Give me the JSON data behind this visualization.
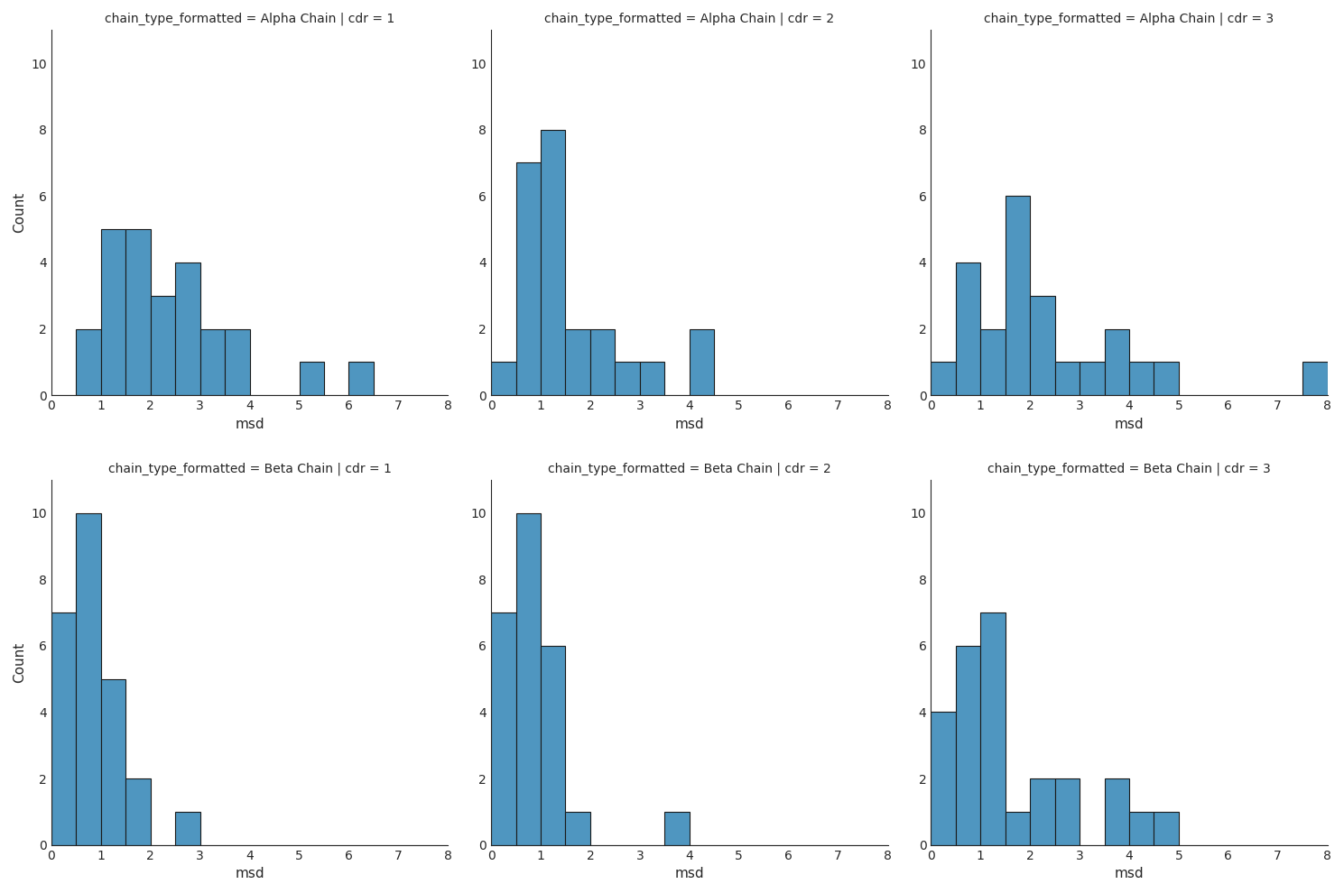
{
  "subplots": [
    {
      "title": "chain_type_formatted = Alpha Chain | cdr = 1",
      "xlabel": "msd",
      "ylabel": "Count",
      "bin_edges": [
        0.0,
        0.5,
        1.0,
        1.5,
        2.0,
        2.5,
        3.0,
        3.5,
        4.0,
        4.5,
        5.0,
        5.5,
        6.0,
        6.5,
        7.0,
        7.5,
        8.0
      ],
      "counts": [
        0,
        2,
        5,
        5,
        3,
        4,
        2,
        2,
        0,
        0,
        1,
        0,
        1,
        0,
        0,
        0
      ]
    },
    {
      "title": "chain_type_formatted = Alpha Chain | cdr = 2",
      "xlabel": "msd",
      "ylabel": "Count",
      "bin_edges": [
        0.0,
        0.5,
        1.0,
        1.5,
        2.0,
        2.5,
        3.0,
        3.5,
        4.0,
        4.5,
        5.0,
        5.5,
        6.0,
        6.5,
        7.0,
        7.5,
        8.0
      ],
      "counts": [
        1,
        7,
        8,
        2,
        2,
        1,
        1,
        0,
        2,
        0,
        0,
        0,
        0,
        0,
        0,
        0
      ]
    },
    {
      "title": "chain_type_formatted = Alpha Chain | cdr = 3",
      "xlabel": "msd",
      "ylabel": "Count",
      "bin_edges": [
        0.0,
        0.5,
        1.0,
        1.5,
        2.0,
        2.5,
        3.0,
        3.5,
        4.0,
        4.5,
        5.0,
        5.5,
        6.0,
        6.5,
        7.0,
        7.5,
        8.0
      ],
      "counts": [
        1,
        4,
        2,
        6,
        3,
        1,
        1,
        2,
        1,
        1,
        0,
        0,
        0,
        0,
        0,
        1
      ]
    },
    {
      "title": "chain_type_formatted = Beta Chain | cdr = 1",
      "xlabel": "msd",
      "ylabel": "Count",
      "bin_edges": [
        0.0,
        0.5,
        1.0,
        1.5,
        2.0,
        2.5,
        3.0,
        3.5,
        4.0,
        4.5,
        5.0,
        5.5,
        6.0,
        6.5,
        7.0,
        7.5,
        8.0
      ],
      "counts": [
        7,
        10,
        5,
        2,
        0,
        1,
        0,
        0,
        0,
        0,
        0,
        0,
        0,
        0,
        0,
        0
      ]
    },
    {
      "title": "chain_type_formatted = Beta Chain | cdr = 2",
      "xlabel": "msd",
      "ylabel": "Count",
      "bin_edges": [
        0.0,
        0.5,
        1.0,
        1.5,
        2.0,
        2.5,
        3.0,
        3.5,
        4.0,
        4.5,
        5.0,
        5.5,
        6.0,
        6.5,
        7.0,
        7.5,
        8.0
      ],
      "counts": [
        7,
        10,
        6,
        1,
        0,
        0,
        0,
        1,
        0,
        0,
        0,
        0,
        0,
        0,
        0,
        0
      ]
    },
    {
      "title": "chain_type_formatted = Beta Chain | cdr = 3",
      "xlabel": "msd",
      "ylabel": "Count",
      "bin_edges": [
        0.0,
        0.5,
        1.0,
        1.5,
        2.0,
        2.5,
        3.0,
        3.5,
        4.0,
        4.5,
        5.0,
        5.5,
        6.0,
        6.5,
        7.0,
        7.5,
        8.0
      ],
      "counts": [
        4,
        6,
        7,
        1,
        2,
        2,
        0,
        2,
        1,
        1,
        0,
        0,
        0,
        0,
        0,
        0
      ]
    }
  ],
  "bar_color": "#4f96c0",
  "bar_edgecolor": "#1a1a1a",
  "xlim": [
    0,
    8
  ],
  "xticks": [
    0,
    1,
    2,
    3,
    4,
    5,
    6,
    7,
    8
  ],
  "ylim": [
    0,
    11
  ],
  "yticks": [
    0,
    2,
    4,
    6,
    8,
    10
  ],
  "ylabel": "Count",
  "nrows": 2,
  "ncols": 3,
  "figsize": [
    14.89,
    9.9
  ],
  "dpi": 100,
  "title_fontsize": 10,
  "label_fontsize": 11,
  "tick_fontsize": 10
}
